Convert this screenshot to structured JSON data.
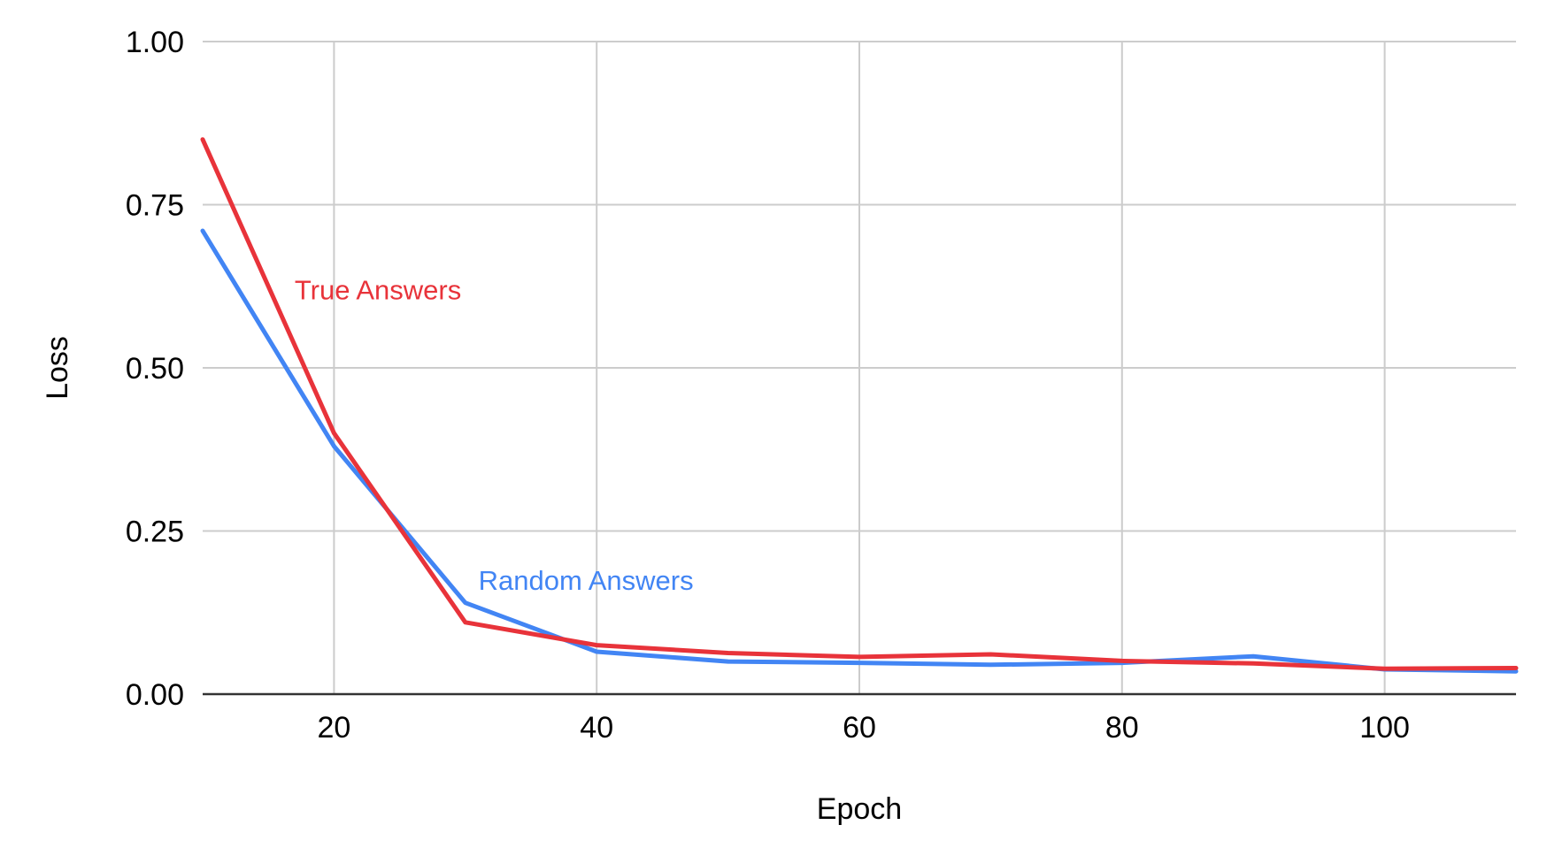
{
  "chart_data": {
    "type": "line",
    "title": "",
    "xlabel": "Epoch",
    "ylabel": "Loss",
    "xlim": [
      10,
      110
    ],
    "ylim": [
      0,
      1
    ],
    "x_ticks": [
      20,
      40,
      60,
      80,
      100
    ],
    "x_tick_labels": [
      "20",
      "40",
      "60",
      "80",
      "100"
    ],
    "y_ticks": [
      0,
      0.25,
      0.5,
      0.75,
      1.0
    ],
    "y_tick_labels": [
      "0.00",
      "0.25",
      "0.50",
      "0.75",
      "1.00"
    ],
    "grid": true,
    "legend": "inline labels",
    "x": [
      10,
      20,
      30,
      40,
      50,
      60,
      70,
      80,
      90,
      100,
      110
    ],
    "series": [
      {
        "name": "Random Answers",
        "color": "#4285f4",
        "label_anchor": {
          "x": 31,
          "y": 0.16
        },
        "values": [
          0.71,
          0.38,
          0.14,
          0.065,
          0.05,
          0.048,
          0.045,
          0.048,
          0.058,
          0.038,
          0.035
        ]
      },
      {
        "name": "True Answers",
        "color": "#e8333a",
        "label_anchor": {
          "x": 17,
          "y": 0.605
        },
        "values": [
          0.85,
          0.4,
          0.11,
          0.075,
          0.063,
          0.057,
          0.061,
          0.051,
          0.047,
          0.039,
          0.04
        ]
      }
    ]
  }
}
